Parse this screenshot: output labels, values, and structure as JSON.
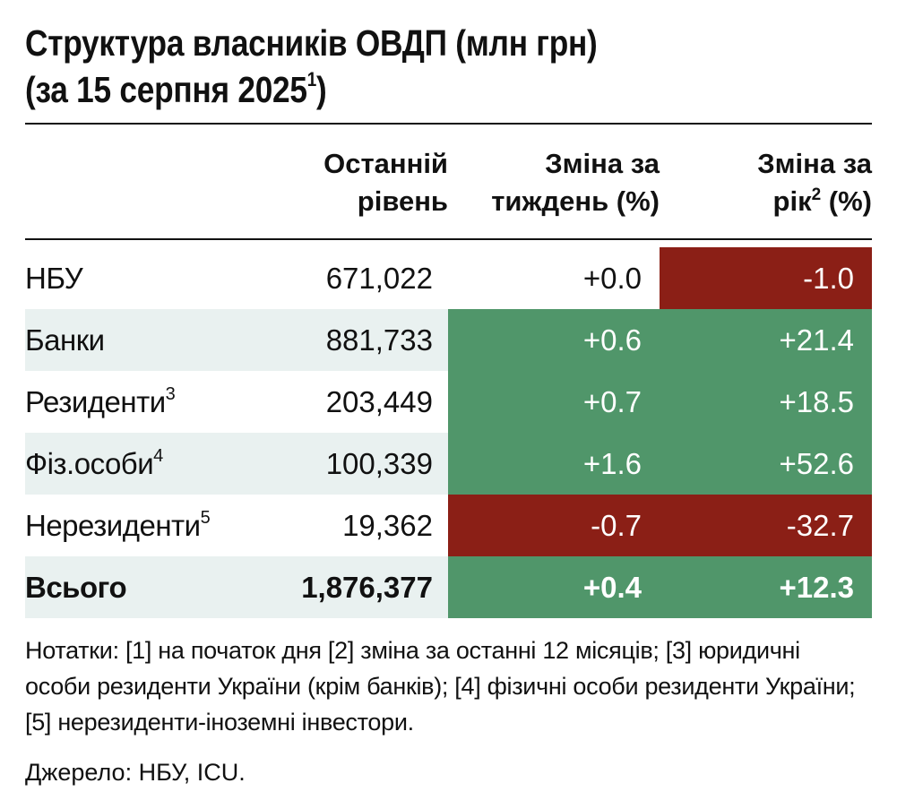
{
  "title": {
    "line1": "Структура власників ОВДП (млн грн)",
    "line2": "(за 15 серпня 2025",
    "sup": "1",
    "close": ")"
  },
  "columns": {
    "level": [
      "Останній",
      "рівень"
    ],
    "week": [
      "Зміна за",
      "тиждень (%)"
    ],
    "year_line1": "Зміна за",
    "year_line2_pre": "рік",
    "year_sup": "2",
    "year_line2_post": " (%)"
  },
  "colors": {
    "positive": "#50966a",
    "negative": "#8b1f16",
    "shade": "#e9f1f0"
  },
  "chart_data": {
    "type": "table",
    "rows": [
      {
        "name": "НБУ",
        "sup": "",
        "level": "671,022",
        "week": "+0.0",
        "year": "-1.0",
        "week_sign": "none",
        "year_sign": "neg",
        "shaded": false,
        "bold": false
      },
      {
        "name": "Банки",
        "sup": "",
        "level": "881,733",
        "week": "+0.6",
        "year": "+21.4",
        "week_sign": "pos",
        "year_sign": "pos",
        "shaded": true,
        "bold": false
      },
      {
        "name": "Резиденти",
        "sup": "3",
        "level": "203,449",
        "week": "+0.7",
        "year": "+18.5",
        "week_sign": "pos",
        "year_sign": "pos",
        "shaded": false,
        "bold": false
      },
      {
        "name": "Фіз.особи",
        "sup": "4",
        "level": "100,339",
        "week": "+1.6",
        "year": "+52.6",
        "week_sign": "pos",
        "year_sign": "pos",
        "shaded": true,
        "bold": false
      },
      {
        "name": "Нерезиденти",
        "sup": "5",
        "level": "19,362",
        "week": "-0.7",
        "year": "-32.7",
        "week_sign": "neg",
        "year_sign": "neg",
        "shaded": false,
        "bold": false
      },
      {
        "name": "Всього",
        "sup": "",
        "level": "1,876,377",
        "week": "+0.4",
        "year": "+12.3",
        "week_sign": "pos",
        "year_sign": "pos",
        "shaded": true,
        "bold": true
      }
    ]
  },
  "notes": "Нотатки: [1] на початок дня [2] зміна за останні 12 місяців; [3] юридичні особи  резиденти України (крім банків); [4] фізичні особи резиденти України; [5] нерезиденти-іноземні інвестори.",
  "source": "Джерело: НБУ, ICU."
}
